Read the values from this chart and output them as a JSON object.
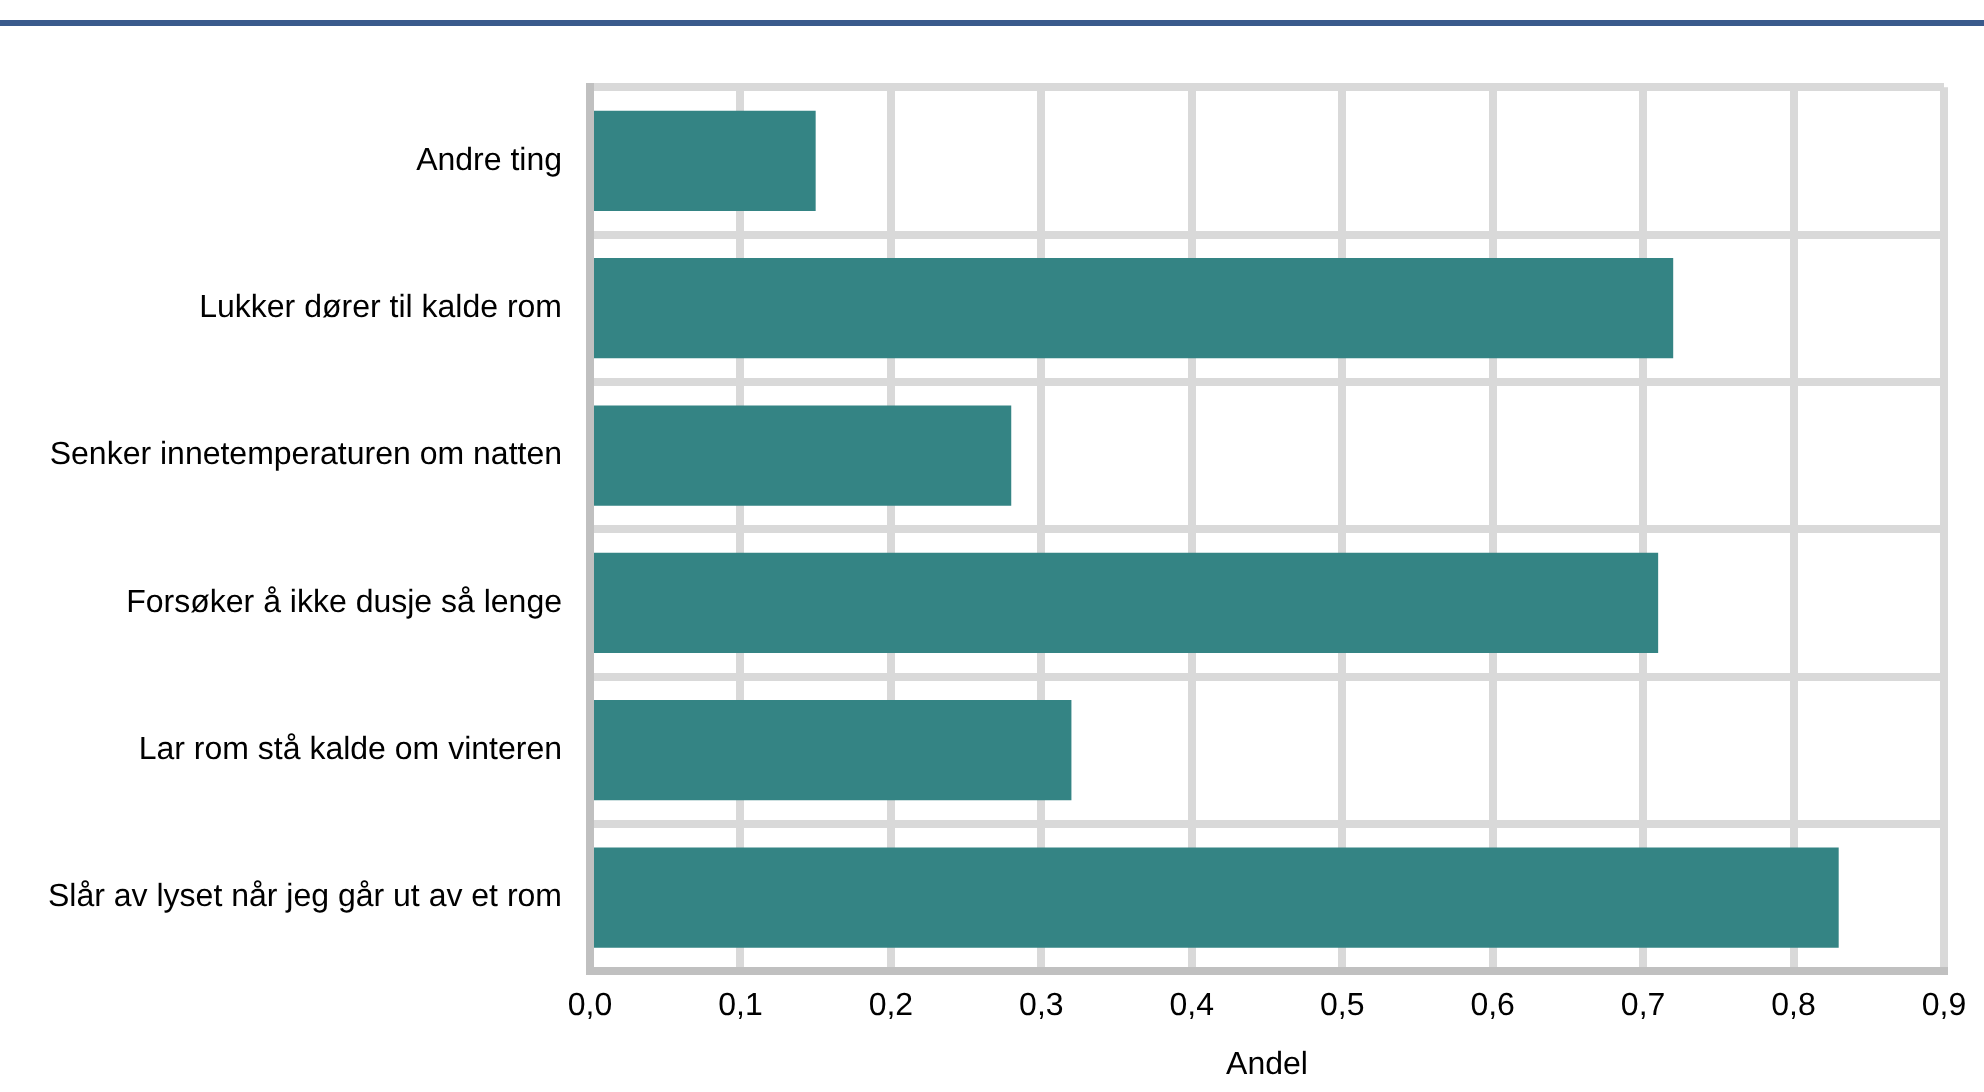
{
  "chart_data": {
    "type": "bar",
    "orientation": "horizontal",
    "categories": [
      "Andre ting",
      "Lukker dører til kalde rom",
      "Senker innetemperaturen om natten",
      "Forsøker å ikke dusje så lenge",
      "Lar rom stå kalde om vinteren",
      "Slår av lyset når jeg går ut av et rom"
    ],
    "values": [
      0.15,
      0.72,
      0.28,
      0.71,
      0.32,
      0.83
    ],
    "color": "#348484",
    "xlabel": "Andel",
    "xlim": [
      0,
      0.9
    ],
    "xticks": [
      {
        "value": 0,
        "label": "0,0"
      },
      {
        "value": 0.1,
        "label": "0,1"
      },
      {
        "value": 0.2,
        "label": "0,2"
      },
      {
        "value": 0.3,
        "label": "0,3"
      },
      {
        "value": 0.4,
        "label": "0,4"
      },
      {
        "value": 0.5,
        "label": "0,5"
      },
      {
        "value": 0.6,
        "label": "0,6"
      },
      {
        "value": 0.7,
        "label": "0,7"
      },
      {
        "value": 0.8,
        "label": "0,8"
      },
      {
        "value": 0.9,
        "label": "0,9"
      }
    ],
    "grid": true,
    "legend": false
  }
}
